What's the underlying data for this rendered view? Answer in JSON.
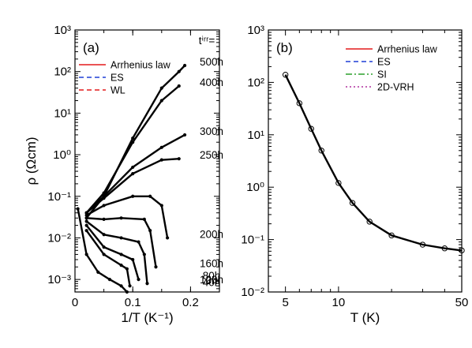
{
  "chart_data": [
    {
      "panel_label": "(a)",
      "type": "line",
      "xlabel": "1/T (K⁻¹)",
      "ylabel": "ρ (Ωcm)",
      "xlim": [
        0,
        0.25
      ],
      "ylim": [
        0.0005,
        1000
      ],
      "yscale": "log",
      "xticks": [
        0,
        0.1,
        0.2
      ],
      "xtick_labels": [
        "0",
        "0.1",
        "0.2"
      ],
      "yticks": [
        0.001,
        0.01,
        0.1,
        1,
        10,
        100,
        1000
      ],
      "ytick_labels": [
        "10⁻³",
        "10⁻²",
        "10⁻¹",
        "10⁰",
        "10¹",
        "10²",
        "10³"
      ],
      "legend": {
        "placement": "top-left",
        "entries": [
          {
            "label": "Arrhenius law",
            "color": "#e41a1c",
            "style": "solid"
          },
          {
            "label": "ES",
            "color": "#1f3fd6",
            "style": "dashed"
          },
          {
            "label": "WL",
            "color": "#e41a1c",
            "style": "dashed"
          }
        ]
      },
      "irradiation_header": "tⁱʳʳ=",
      "series": [
        {
          "name": "500h",
          "x": [
            0.02,
            0.05,
            0.1,
            0.15,
            0.18,
            0.19
          ],
          "y": [
            0.03,
            0.1,
            2.5,
            40,
            100,
            140
          ]
        },
        {
          "name": "400h",
          "x": [
            0.02,
            0.05,
            0.1,
            0.15,
            0.18
          ],
          "y": [
            0.04,
            0.12,
            2.0,
            20,
            45
          ]
        },
        {
          "name": "300h",
          "x": [
            0.02,
            0.05,
            0.1,
            0.15,
            0.19
          ],
          "y": [
            0.04,
            0.1,
            0.5,
            1.5,
            3.0
          ]
        },
        {
          "name": "250h",
          "x": [
            0.02,
            0.05,
            0.1,
            0.15,
            0.18
          ],
          "y": [
            0.04,
            0.09,
            0.35,
            0.75,
            0.8
          ]
        },
        {
          "name": "200h",
          "x": [
            0.02,
            0.05,
            0.1,
            0.13,
            0.15,
            0.16
          ],
          "y": [
            0.035,
            0.06,
            0.1,
            0.1,
            0.06,
            0.01
          ]
        },
        {
          "name": "160h",
          "x": [
            0.02,
            0.05,
            0.08,
            0.12,
            0.13,
            0.14
          ],
          "y": [
            0.03,
            0.028,
            0.03,
            0.028,
            0.015,
            0.002
          ]
        },
        {
          "name": "120h",
          "x": [
            0.02,
            0.05,
            0.08,
            0.11,
            0.12,
            0.125
          ],
          "y": [
            0.025,
            0.012,
            0.01,
            0.008,
            0.004,
            0.0008
          ]
        },
        {
          "name": "80h",
          "x": [
            0.02,
            0.05,
            0.08,
            0.1,
            0.11
          ],
          "y": [
            0.02,
            0.006,
            0.004,
            0.003,
            0.001
          ]
        },
        {
          "name": "40h",
          "x": [
            0.02,
            0.05,
            0.08,
            0.09,
            0.095
          ],
          "y": [
            0.015,
            0.004,
            0.0022,
            0.0018,
            0.0007
          ]
        },
        {
          "name": "0h",
          "x": [
            0.005,
            0.02,
            0.04,
            0.06,
            0.08,
            0.09
          ],
          "y": [
            0.05,
            0.004,
            0.0015,
            0.001,
            0.0007,
            0.0005
          ]
        }
      ]
    },
    {
      "panel_label": "(b)",
      "type": "line",
      "xlabel": "T (K)",
      "ylabel": "",
      "xlim": [
        4,
        50
      ],
      "xscale": "log",
      "ylim": [
        0.01,
        1000
      ],
      "yscale": "log",
      "xticks": [
        5,
        10,
        50
      ],
      "xtick_labels": [
        "5",
        "10",
        "50"
      ],
      "yticks": [
        0.01,
        0.1,
        1,
        10,
        100,
        1000
      ],
      "ytick_labels": [
        "10⁻²",
        "10⁻¹",
        "10⁰",
        "10¹",
        "10²",
        "10³"
      ],
      "legend": {
        "placement": "top-right",
        "entries": [
          {
            "label": "Arrhenius law",
            "color": "#e41a1c",
            "style": "solid"
          },
          {
            "label": "ES",
            "color": "#1f3fd6",
            "style": "dashed"
          },
          {
            "label": "SI",
            "color": "#2ca02c",
            "style": "dashdot"
          },
          {
            "label": "2D-VRH",
            "color": "#b0309f",
            "style": "dotted"
          }
        ]
      },
      "series": [
        {
          "name": "data",
          "x": [
            5,
            6,
            7,
            8,
            10,
            12,
            15,
            20,
            30,
            40,
            50
          ],
          "y": [
            140,
            40,
            13,
            5,
            1.2,
            0.5,
            0.22,
            0.12,
            0.08,
            0.068,
            0.062
          ]
        }
      ]
    }
  ]
}
